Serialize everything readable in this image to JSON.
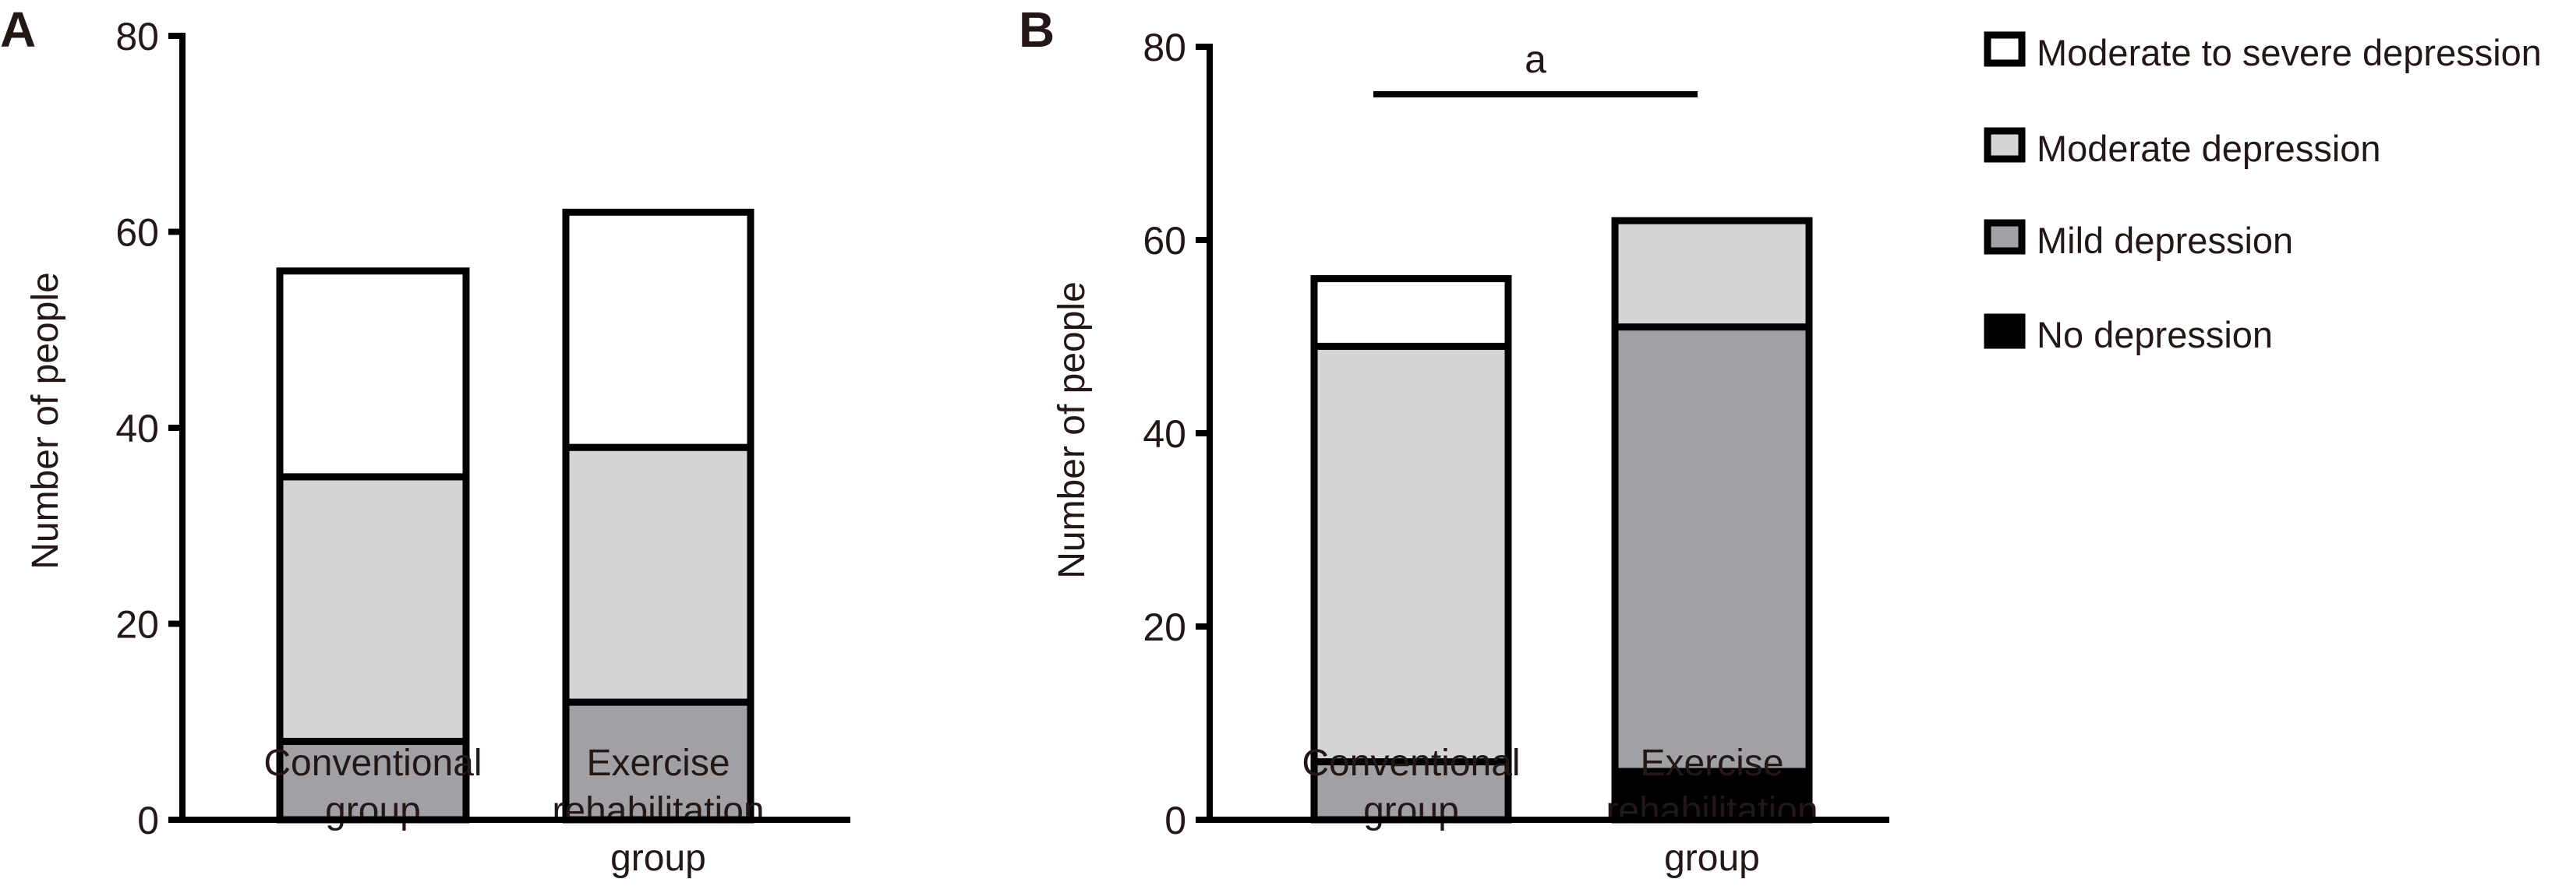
{
  "legend": [
    {
      "label": "Moderate to severe depression",
      "color": "#ffffff"
    },
    {
      "label": "Moderate depression",
      "color": "#d4d4d4"
    },
    {
      "label": "Mild depression",
      "color": "#a1a0a5"
    },
    {
      "label": "No depression",
      "color": "#000000"
    }
  ],
  "chart_data": [
    {
      "type": "bar",
      "stacked": true,
      "panel": "A",
      "ylabel": "Number of people",
      "ylim": [
        0,
        80
      ],
      "yticks": [
        "0",
        "20",
        "40",
        "60",
        "80"
      ],
      "categories": [
        [
          "Conventional",
          "group"
        ],
        [
          "Exercise",
          "rehabilitation",
          "group"
        ]
      ],
      "series": [
        {
          "name": "No depression",
          "values": [
            0,
            0
          ]
        },
        {
          "name": "Mild depression",
          "values": [
            8,
            12
          ]
        },
        {
          "name": "Moderate depression",
          "values": [
            27,
            26
          ]
        },
        {
          "name": "Moderate to severe depression",
          "values": [
            21,
            24
          ]
        }
      ]
    },
    {
      "type": "bar",
      "stacked": true,
      "panel": "B",
      "ylabel": "Number of people",
      "ylim": [
        0,
        80
      ],
      "yticks": [
        "0",
        "20",
        "40",
        "60",
        "80"
      ],
      "categories": [
        [
          "Conventional",
          "group"
        ],
        [
          "Exercise",
          "rehabilitation",
          "group"
        ]
      ],
      "series": [
        {
          "name": "No depression",
          "values": [
            0,
            5
          ]
        },
        {
          "name": "Mild depression",
          "values": [
            6,
            46
          ]
        },
        {
          "name": "Moderate depression",
          "values": [
            43,
            11
          ]
        },
        {
          "name": "Moderate to severe depression",
          "values": [
            7,
            0
          ]
        }
      ],
      "annotation": "a"
    }
  ]
}
